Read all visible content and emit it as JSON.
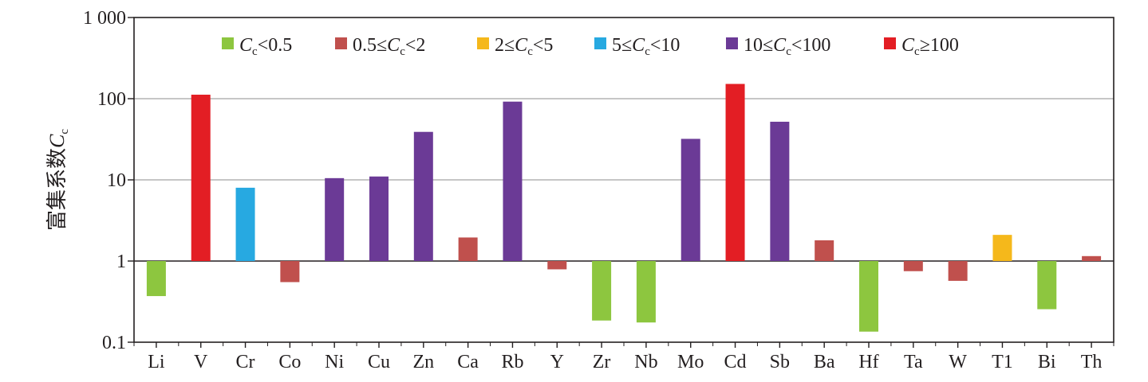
{
  "chart_data": {
    "type": "bar",
    "ylabel": "富集系数",
    "ylabel_symbol": "C",
    "ylabel_subscript": "c",
    "y_scale": "log",
    "ylim": [
      0.1,
      1000
    ],
    "y_ticks": [
      0.1,
      1,
      10,
      100,
      1000
    ],
    "y_tick_labels": [
      "0.1",
      "1",
      "10",
      "100",
      "1 000"
    ],
    "baseline": 1,
    "gridlines": [
      1,
      10,
      100
    ],
    "categories": [
      "Li",
      "V",
      "Cr",
      "Co",
      "Ni",
      "Cu",
      "Zn",
      "Ca",
      "Rb",
      "Y",
      "Zr",
      "Nb",
      "Mo",
      "Cd",
      "Sb",
      "Ba",
      "Hf",
      "Ta",
      "W",
      "T1",
      "Bi",
      "Th"
    ],
    "values": [
      0.37,
      112,
      8,
      0.55,
      10.5,
      11,
      39,
      1.95,
      92,
      0.79,
      0.185,
      0.175,
      32,
      152,
      52,
      1.8,
      0.135,
      0.75,
      0.57,
      2.1,
      0.255,
      1.15
    ],
    "bar_class": [
      0,
      5,
      3,
      1,
      4,
      4,
      4,
      1,
      4,
      1,
      0,
      0,
      4,
      5,
      4,
      1,
      0,
      1,
      1,
      2,
      0,
      1
    ],
    "legend": [
      {
        "pre": "",
        "mid": "<0.5",
        "color": "#8dc63f"
      },
      {
        "pre": "0.5≤",
        "mid": "<2",
        "color": "#c0504d"
      },
      {
        "pre": "2≤",
        "mid": "<5",
        "color": "#f5b81b"
      },
      {
        "pre": "5≤",
        "mid": "<10",
        "color": "#27a9e1"
      },
      {
        "pre": "10≤",
        "mid": "<100",
        "color": "#6b3a96"
      },
      {
        "pre": "",
        "mid": "≥100",
        "color": "#e31e24"
      }
    ],
    "legend_symbol": "C",
    "legend_subscript": "c",
    "legend_position": "top-left"
  }
}
